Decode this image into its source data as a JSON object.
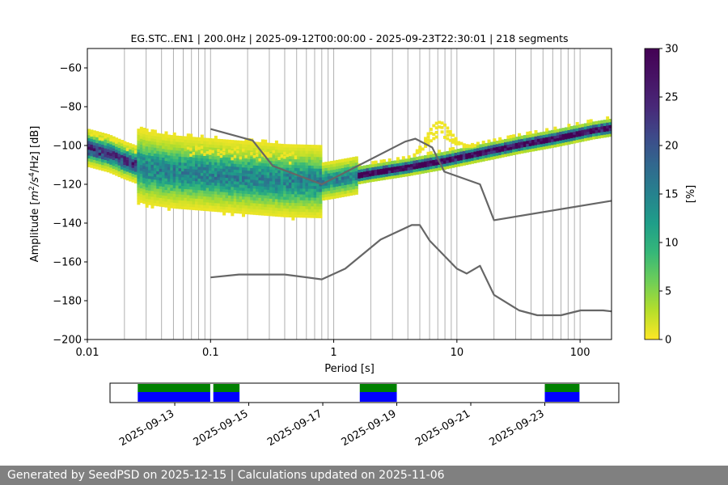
{
  "chart_data": [
    {
      "type": "heatmap",
      "title": "EG.STC..EN1 | 200.0Hz | 2025-09-12T00:00:00 - 2025-09-23T22:30:01 | 218 segments",
      "xlabel": "Period [s]",
      "ylabel": "Amplitude [m²/s⁴/Hz] [dB]",
      "ylabel_parts": {
        "pre": "Amplitude [",
        "m": "m",
        "sup1": "2",
        "mid": "/s",
        "sup2": "4",
        "post": "/Hz] [dB]"
      },
      "xscale": "log",
      "xlim": [
        0.01,
        180
      ],
      "ylim": [
        -200,
        -50
      ],
      "xticks": [
        0.01,
        0.1,
        1,
        10,
        100
      ],
      "xtick_labels": [
        "0.01",
        "0.1",
        "1",
        "10",
        "100"
      ],
      "yticks": [
        -60,
        -80,
        -100,
        -120,
        -140,
        -160,
        -180,
        -200
      ],
      "ytick_labels": [
        "−60",
        "−80",
        "−100",
        "−120",
        "−140",
        "−160",
        "−180",
        "−200"
      ],
      "grid": "vertical lines at log-decade minor ticks",
      "colorbar": {
        "label": "[%]",
        "range": [
          0,
          30
        ],
        "ticks": [
          0,
          5,
          10,
          15,
          20,
          25,
          30
        ],
        "tick_labels": [
          "0",
          "5",
          "10",
          "15",
          "20",
          "25",
          "30"
        ],
        "colormap": "viridis_r"
      },
      "series": [
        {
          "role": "noise-model-high",
          "color": "#666666",
          "x": [
            0.1,
            0.22,
            0.32,
            0.8,
            3.8,
            4.6,
            6.3,
            7.9,
            15.4,
            20,
            180
          ],
          "y": [
            -91.5,
            -97.4,
            -110.5,
            -120,
            -98,
            -96.5,
            -101,
            -113.5,
            -120,
            -138.5,
            -128.5
          ]
        },
        {
          "role": "noise-model-low",
          "color": "#666666",
          "x": [
            0.1,
            0.17,
            0.4,
            0.8,
            1.24,
            2.4,
            4.3,
            5.0,
            6.0,
            10,
            12,
            15.4,
            20,
            32,
            45,
            70,
            101,
            154,
            180
          ],
          "y": [
            -168,
            -166.5,
            -166.5,
            -169,
            -163.5,
            -148.5,
            -141,
            -141,
            -149,
            -163.5,
            -166,
            -162,
            -177,
            -185,
            -187.5,
            -187.5,
            -185,
            -185,
            -185.5
          ]
        },
        {
          "role": "psd-mode",
          "x": [
            0.01,
            0.015,
            0.02,
            0.03,
            0.05,
            0.1,
            0.2,
            0.4,
            0.8,
            1.0,
            2.0,
            4.0,
            8.0,
            16,
            32,
            64,
            128,
            180
          ],
          "y": [
            -101,
            -104,
            -107.5,
            -111.5,
            -113.5,
            -115,
            -116.5,
            -118,
            -118.5,
            -117.5,
            -114,
            -111,
            -107.5,
            -103.5,
            -99.5,
            -96,
            -92,
            -90.5
          ]
        }
      ]
    },
    {
      "type": "timeline",
      "xlim": [
        "2025-09-11T06:00",
        "2025-09-25T00:00"
      ],
      "xticks": [
        "2025-09-13",
        "2025-09-15",
        "2025-09-17",
        "2025-09-19",
        "2025-09-21",
        "2025-09-23"
      ],
      "segments": [
        {
          "start": "2025-09-12T00:00",
          "end": "2025-09-13T23:00"
        },
        {
          "start": "2025-09-14T01:00",
          "end": "2025-09-14T18:00"
        },
        {
          "start": "2025-09-18T00:00",
          "end": "2025-09-19T00:00"
        },
        {
          "start": "2025-09-23T00:00",
          "end": "2025-09-23T22:30"
        }
      ],
      "colors": {
        "top": "#008000",
        "bottom": "#0000ff"
      }
    }
  ],
  "footer": {
    "text": "Generated by SeedPSD on 2025-12-15 | Calculations updated on 2025-11-06"
  }
}
